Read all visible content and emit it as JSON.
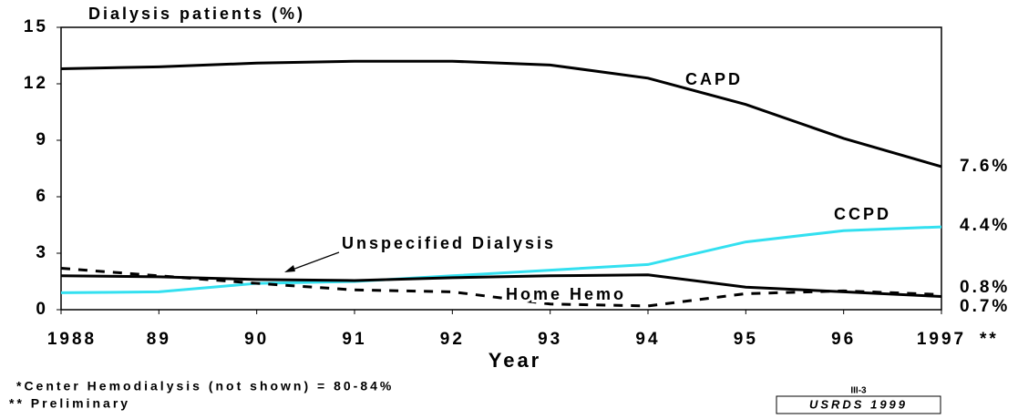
{
  "chart_data": {
    "type": "line",
    "y_title": "Dialysis patients (%)",
    "x_title": "Year",
    "categories": [
      "1988",
      "89",
      "90",
      "91",
      "92",
      "93",
      "94",
      "95",
      "96",
      "1997"
    ],
    "x_note": "**",
    "ylim": [
      0,
      15
    ],
    "yticks": [
      0,
      3,
      6,
      9,
      12,
      15
    ],
    "series": [
      {
        "name": "CAPD",
        "color": "#000000",
        "dash": false,
        "values": [
          12.8,
          12.9,
          13.1,
          13.2,
          13.2,
          13.0,
          12.3,
          10.9,
          9.1,
          7.6
        ],
        "end_label": "7.6%"
      },
      {
        "name": "CCPD",
        "color": "#33e0f0",
        "dash": false,
        "values": [
          0.9,
          0.95,
          1.4,
          1.5,
          1.8,
          2.1,
          2.4,
          3.6,
          4.2,
          4.4
        ],
        "end_label": "4.4%"
      },
      {
        "name": "Unspecified Dialysis",
        "color": "#000000",
        "dash": false,
        "values": [
          1.8,
          1.75,
          1.6,
          1.55,
          1.7,
          1.8,
          1.85,
          1.2,
          0.95,
          0.7
        ],
        "end_label": "0.7%"
      },
      {
        "name": "Home Hemo",
        "color": "#000000",
        "dash": true,
        "values": [
          2.2,
          1.8,
          1.4,
          1.05,
          0.95,
          0.3,
          0.2,
          0.85,
          1.0,
          0.8
        ],
        "end_label": "0.8%"
      }
    ],
    "footnotes": [
      "*Center Hemodialysis (not shown) = 80-84%",
      "** Preliminary"
    ],
    "page_code": "III-3",
    "source": "USRDS 1999"
  }
}
